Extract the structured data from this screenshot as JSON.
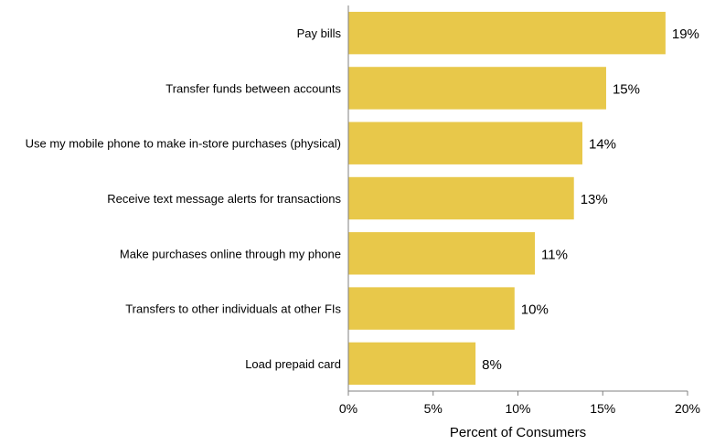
{
  "chart_data": {
    "type": "bar",
    "orientation": "horizontal",
    "categories": [
      "Pay bills",
      "Transfer funds between accounts",
      "Use my mobile phone to make in-store purchases (physical)",
      "Receive text message alerts for transactions",
      "Make purchases online through my phone",
      "Transfers to other individuals at other FIs",
      "Load prepaid card"
    ],
    "values": [
      18.7,
      15.2,
      13.8,
      13.3,
      11.0,
      9.8,
      7.5
    ],
    "value_labels": [
      "19%",
      "15%",
      "14%",
      "13%",
      "11%",
      "10%",
      "8%"
    ],
    "xlim": [
      0,
      20
    ],
    "xticks": [
      0,
      5,
      10,
      15,
      20
    ],
    "xtick_labels": [
      "0%",
      "5%",
      "10%",
      "15%",
      "20%"
    ],
    "xlabel": "Percent of Consumers",
    "ylabel": "",
    "title": "",
    "grid": false,
    "legend": "none",
    "bar_color": "#E8C84A"
  }
}
